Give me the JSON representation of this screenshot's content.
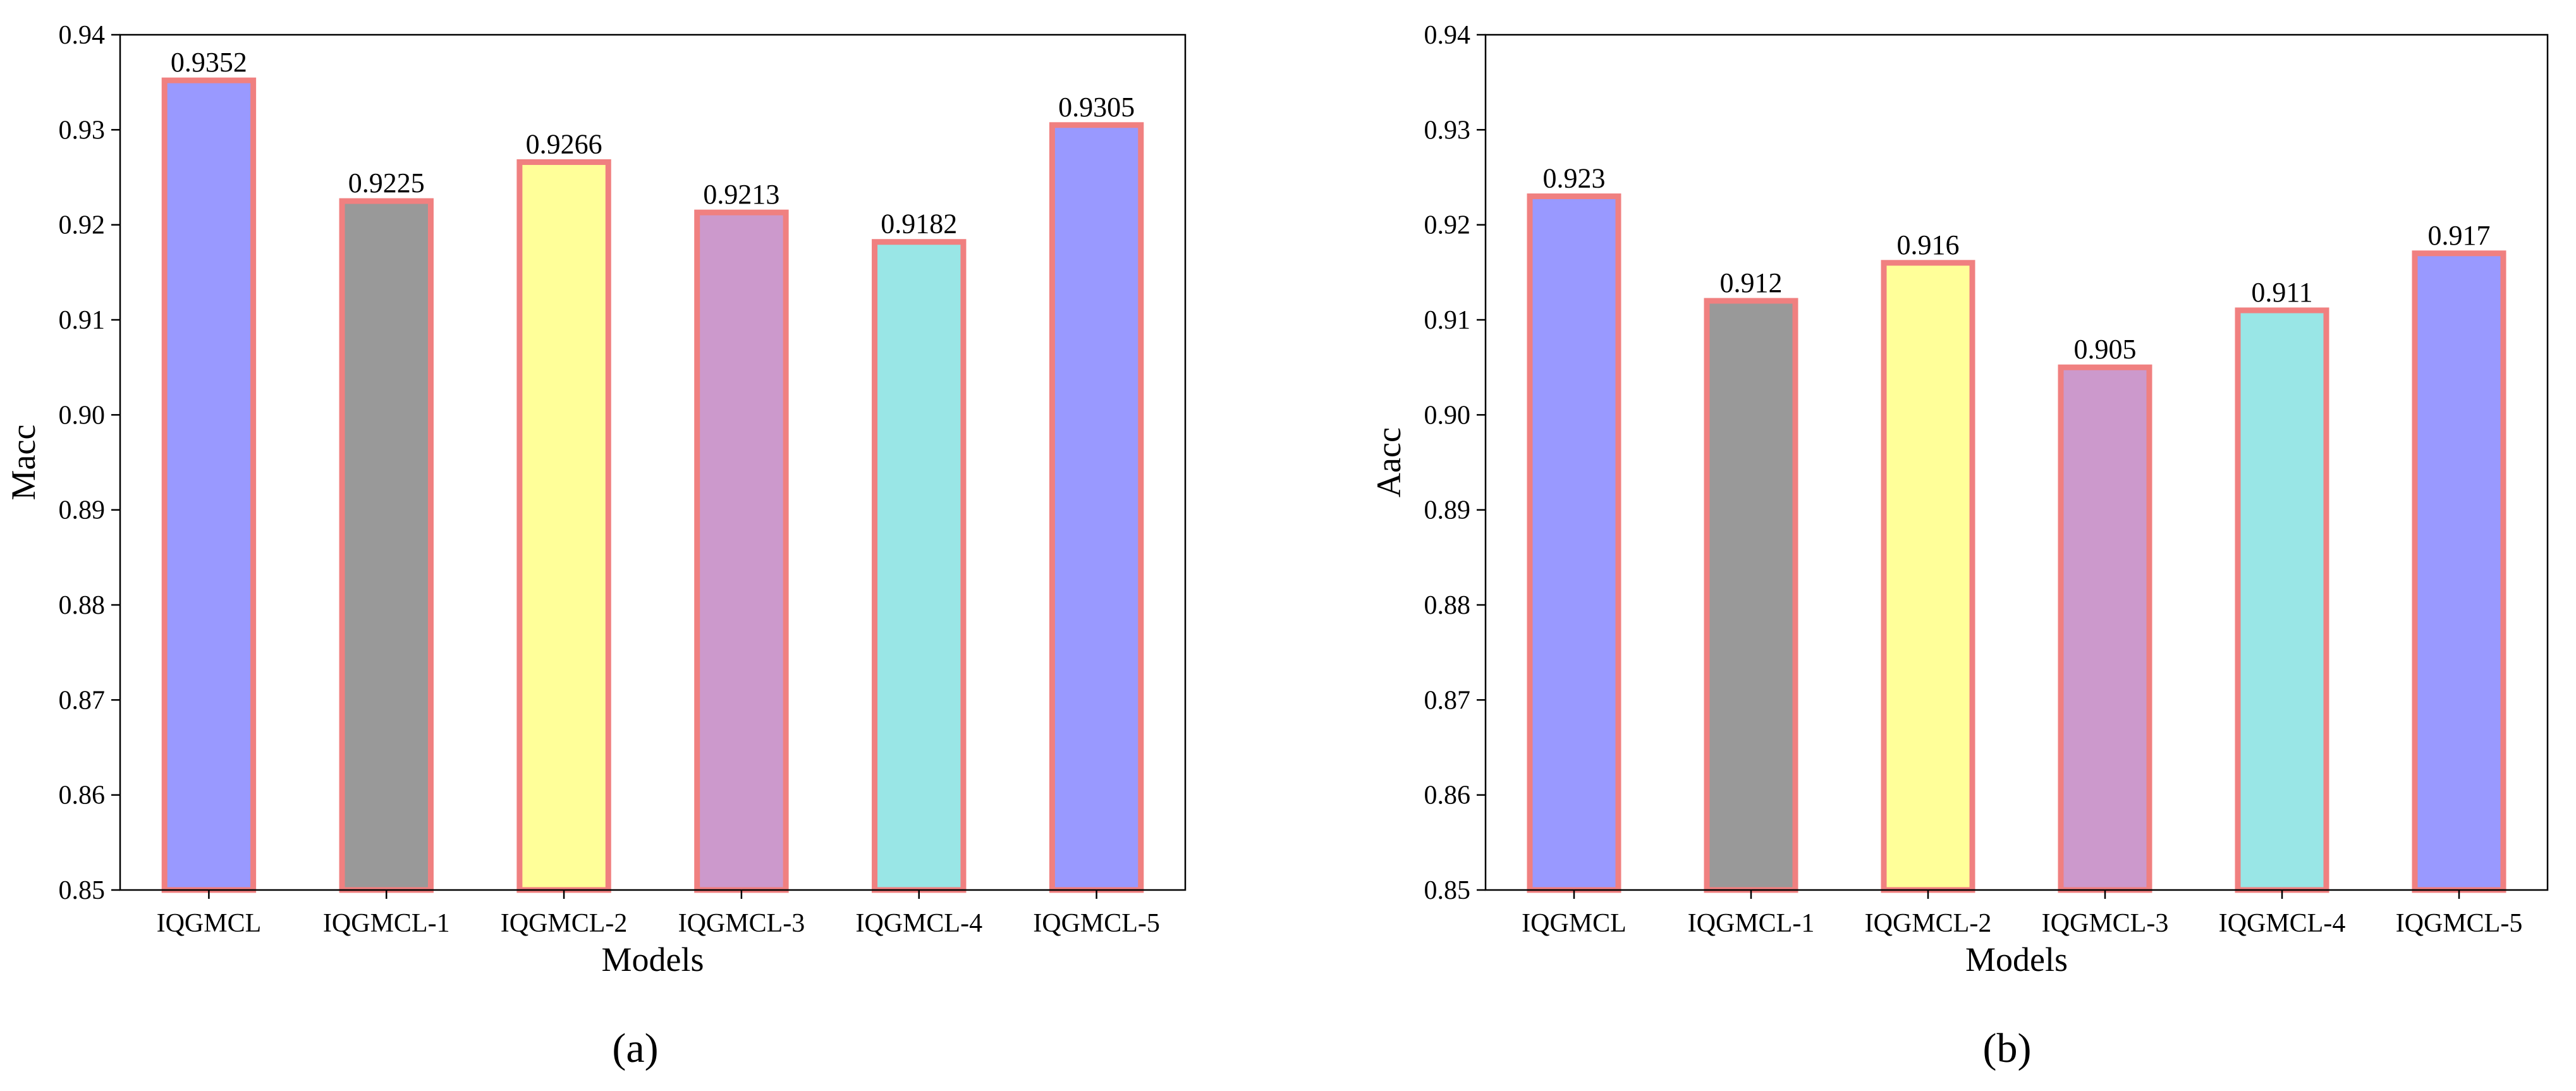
{
  "chart_data": [
    {
      "type": "bar",
      "panel_label": "(a)",
      "xlabel": "Models",
      "ylabel": "Macc",
      "ylim": [
        0.85,
        0.94
      ],
      "yticks": [
        0.85,
        0.86,
        0.87,
        0.88,
        0.89,
        0.9,
        0.91,
        0.92,
        0.93,
        0.94
      ],
      "ytick_labels": [
        "0.85",
        "0.86",
        "0.87",
        "0.88",
        "0.89",
        "0.90",
        "0.91",
        "0.92",
        "0.93",
        "0.94"
      ],
      "categories": [
        "IQGMCL",
        "IQGMCL-1",
        "IQGMCL-2",
        "IQGMCL-3",
        "IQGMCL-4",
        "IQGMCL-5"
      ],
      "values": [
        0.9352,
        0.9225,
        0.9266,
        0.9213,
        0.9182,
        0.9305
      ],
      "value_labels": [
        "0.9352",
        "0.9225",
        "0.9266",
        "0.9213",
        "0.9182",
        "0.9305"
      ],
      "bar_colors": [
        "#9999ff",
        "#999999",
        "#ffff99",
        "#cc99cc",
        "#99e6e6",
        "#9999ff"
      ],
      "edge_color": "#f08080",
      "grid": false
    },
    {
      "type": "bar",
      "panel_label": "(b)",
      "xlabel": "Models",
      "ylabel": "Aacc",
      "ylim": [
        0.85,
        0.94
      ],
      "yticks": [
        0.85,
        0.86,
        0.87,
        0.88,
        0.89,
        0.9,
        0.91,
        0.92,
        0.93,
        0.94
      ],
      "ytick_labels": [
        "0.85",
        "0.86",
        "0.87",
        "0.88",
        "0.89",
        "0.90",
        "0.91",
        "0.92",
        "0.93",
        "0.94"
      ],
      "categories": [
        "IQGMCL",
        "IQGMCL-1",
        "IQGMCL-2",
        "IQGMCL-3",
        "IQGMCL-4",
        "IQGMCL-5"
      ],
      "values": [
        0.923,
        0.912,
        0.916,
        0.905,
        0.911,
        0.917
      ],
      "value_labels": [
        "0.923",
        "0.912",
        "0.916",
        "0.905",
        "0.911",
        "0.917"
      ],
      "bar_colors": [
        "#9999ff",
        "#999999",
        "#ffff99",
        "#cc99cc",
        "#99e6e6",
        "#9999ff"
      ],
      "edge_color": "#f08080",
      "grid": false
    }
  ]
}
